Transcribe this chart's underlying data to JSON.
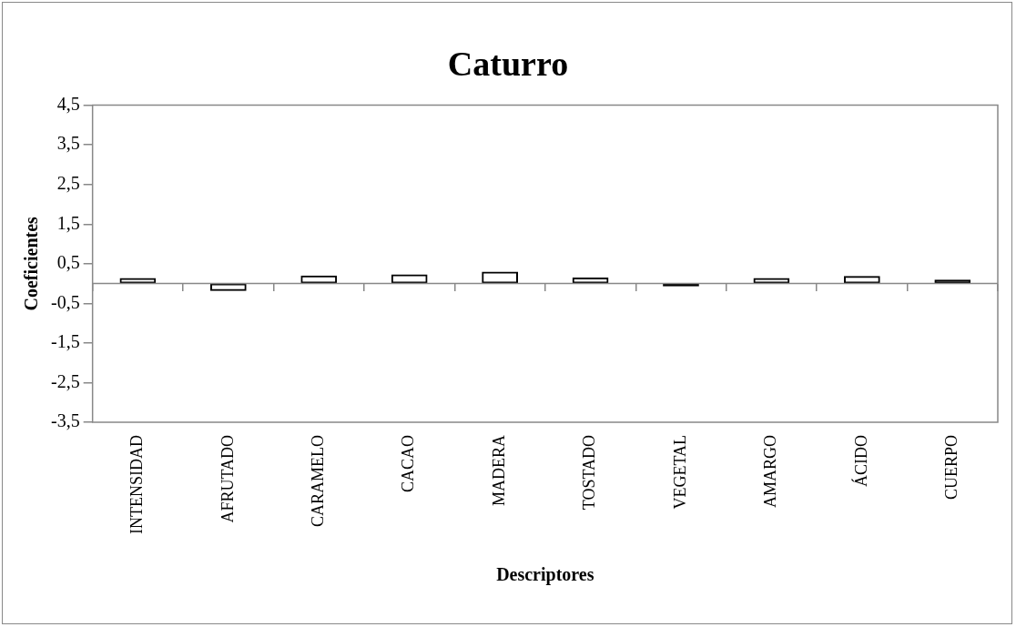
{
  "chart_data": {
    "type": "bar",
    "title": "Caturro",
    "xlabel": "Descriptores",
    "ylabel": "Coeficientes",
    "categories": [
      "INTENSIDAD",
      "AFRUTADO",
      "CARAMELO",
      "CACAO",
      "MADERA",
      "TOSTADO",
      "VEGETAL",
      "AMARGO",
      "ÁCIDO",
      "CUERPO"
    ],
    "values": [
      0.14,
      -0.19,
      0.2,
      0.23,
      0.3,
      0.15,
      -0.07,
      0.14,
      0.19,
      0.1
    ],
    "color": "#000000",
    "ref_lines": [
      {
        "axis": "y",
        "value": 0,
        "color": "#888888"
      }
    ],
    "ylim": [
      -3.5,
      4.5
    ],
    "yticks": [
      {
        "value": -3.5,
        "label": "-3,5"
      },
      {
        "value": -2.5,
        "label": "-2,5"
      },
      {
        "value": -1.5,
        "label": "-1,5"
      },
      {
        "value": -0.5,
        "label": "-0,5"
      },
      {
        "value": 0.5,
        "label": "0,5"
      },
      {
        "value": 1.5,
        "label": "1,5"
      },
      {
        "value": 2.5,
        "label": "2,5"
      },
      {
        "value": 3.5,
        "label": "3,5"
      },
      {
        "value": 4.5,
        "label": "4,5"
      }
    ],
    "grid": false,
    "legend": false
  }
}
